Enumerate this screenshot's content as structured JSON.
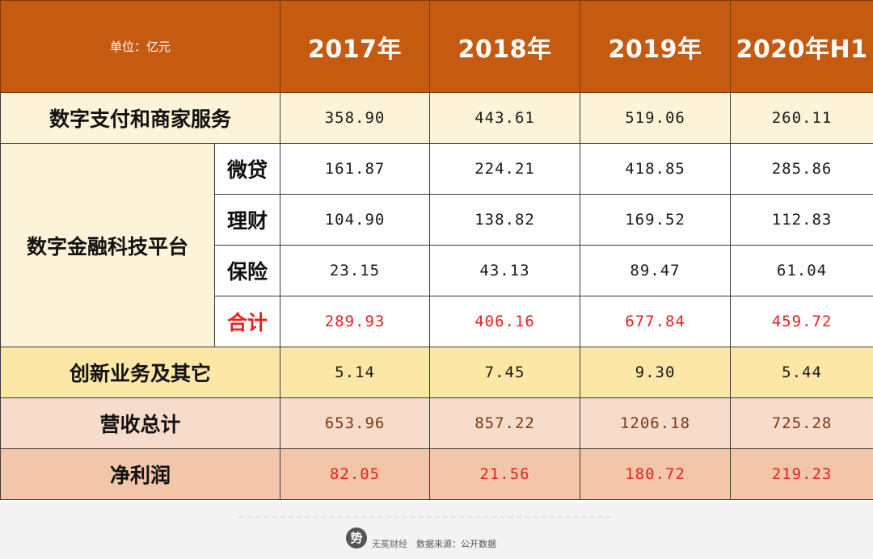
{
  "header": {
    "unit": "单位：亿元",
    "years": [
      "2017年",
      "2018年",
      "2019年",
      "2020年H1"
    ]
  },
  "chart_data": {
    "type": "table",
    "columns": [
      "2017年",
      "2018年",
      "2019年",
      "2020年H1"
    ],
    "rows": [
      {
        "category": "数字支付和商家服务",
        "values": [
          "358.90",
          "443.61",
          "519.06",
          "260.11"
        ]
      },
      {
        "category": "数字金融科技平台",
        "sub": "微贷",
        "values": [
          "161.87",
          "224.21",
          "418.85",
          "285.86"
        ]
      },
      {
        "category": "数字金融科技平台",
        "sub": "理财",
        "values": [
          "104.90",
          "138.82",
          "169.52",
          "112.83"
        ]
      },
      {
        "category": "数字金融科技平台",
        "sub": "保险",
        "values": [
          "23.15",
          "43.13",
          "89.47",
          "61.04"
        ]
      },
      {
        "category": "数字金融科技平台",
        "sub": "合计",
        "values": [
          "289.93",
          "406.16",
          "677.84",
          "459.72"
        ]
      },
      {
        "category": "创新业务及其它",
        "values": [
          "5.14",
          "7.45",
          "9.30",
          "5.44"
        ]
      },
      {
        "category": "营收总计",
        "values": [
          "653.96",
          "857.22",
          "1206.18",
          "725.28"
        ]
      },
      {
        "category": "净利润",
        "values": [
          "82.05",
          "21.56",
          "180.72",
          "219.23"
        ]
      }
    ]
  },
  "labels": {
    "payments": "数字支付和商家服务",
    "fintech": "数字金融科技平台",
    "microloan": "微贷",
    "wealth": "理财",
    "insurance": "保险",
    "subtotal": "合计",
    "innovation": "创新业务及其它",
    "revenue": "营收总计",
    "profit": "净利润"
  },
  "colors": {
    "header_bg": "#c55a11",
    "highlight_red": "#e8201f",
    "cream": "#fdf3d9",
    "yellow": "#fce7a6",
    "pink": "#f8dccb",
    "salmon": "#f4c6a9"
  },
  "footer": {
    "logo_glyph": "势",
    "brand": "无冕财经",
    "source": "数据来源：公开数据"
  }
}
